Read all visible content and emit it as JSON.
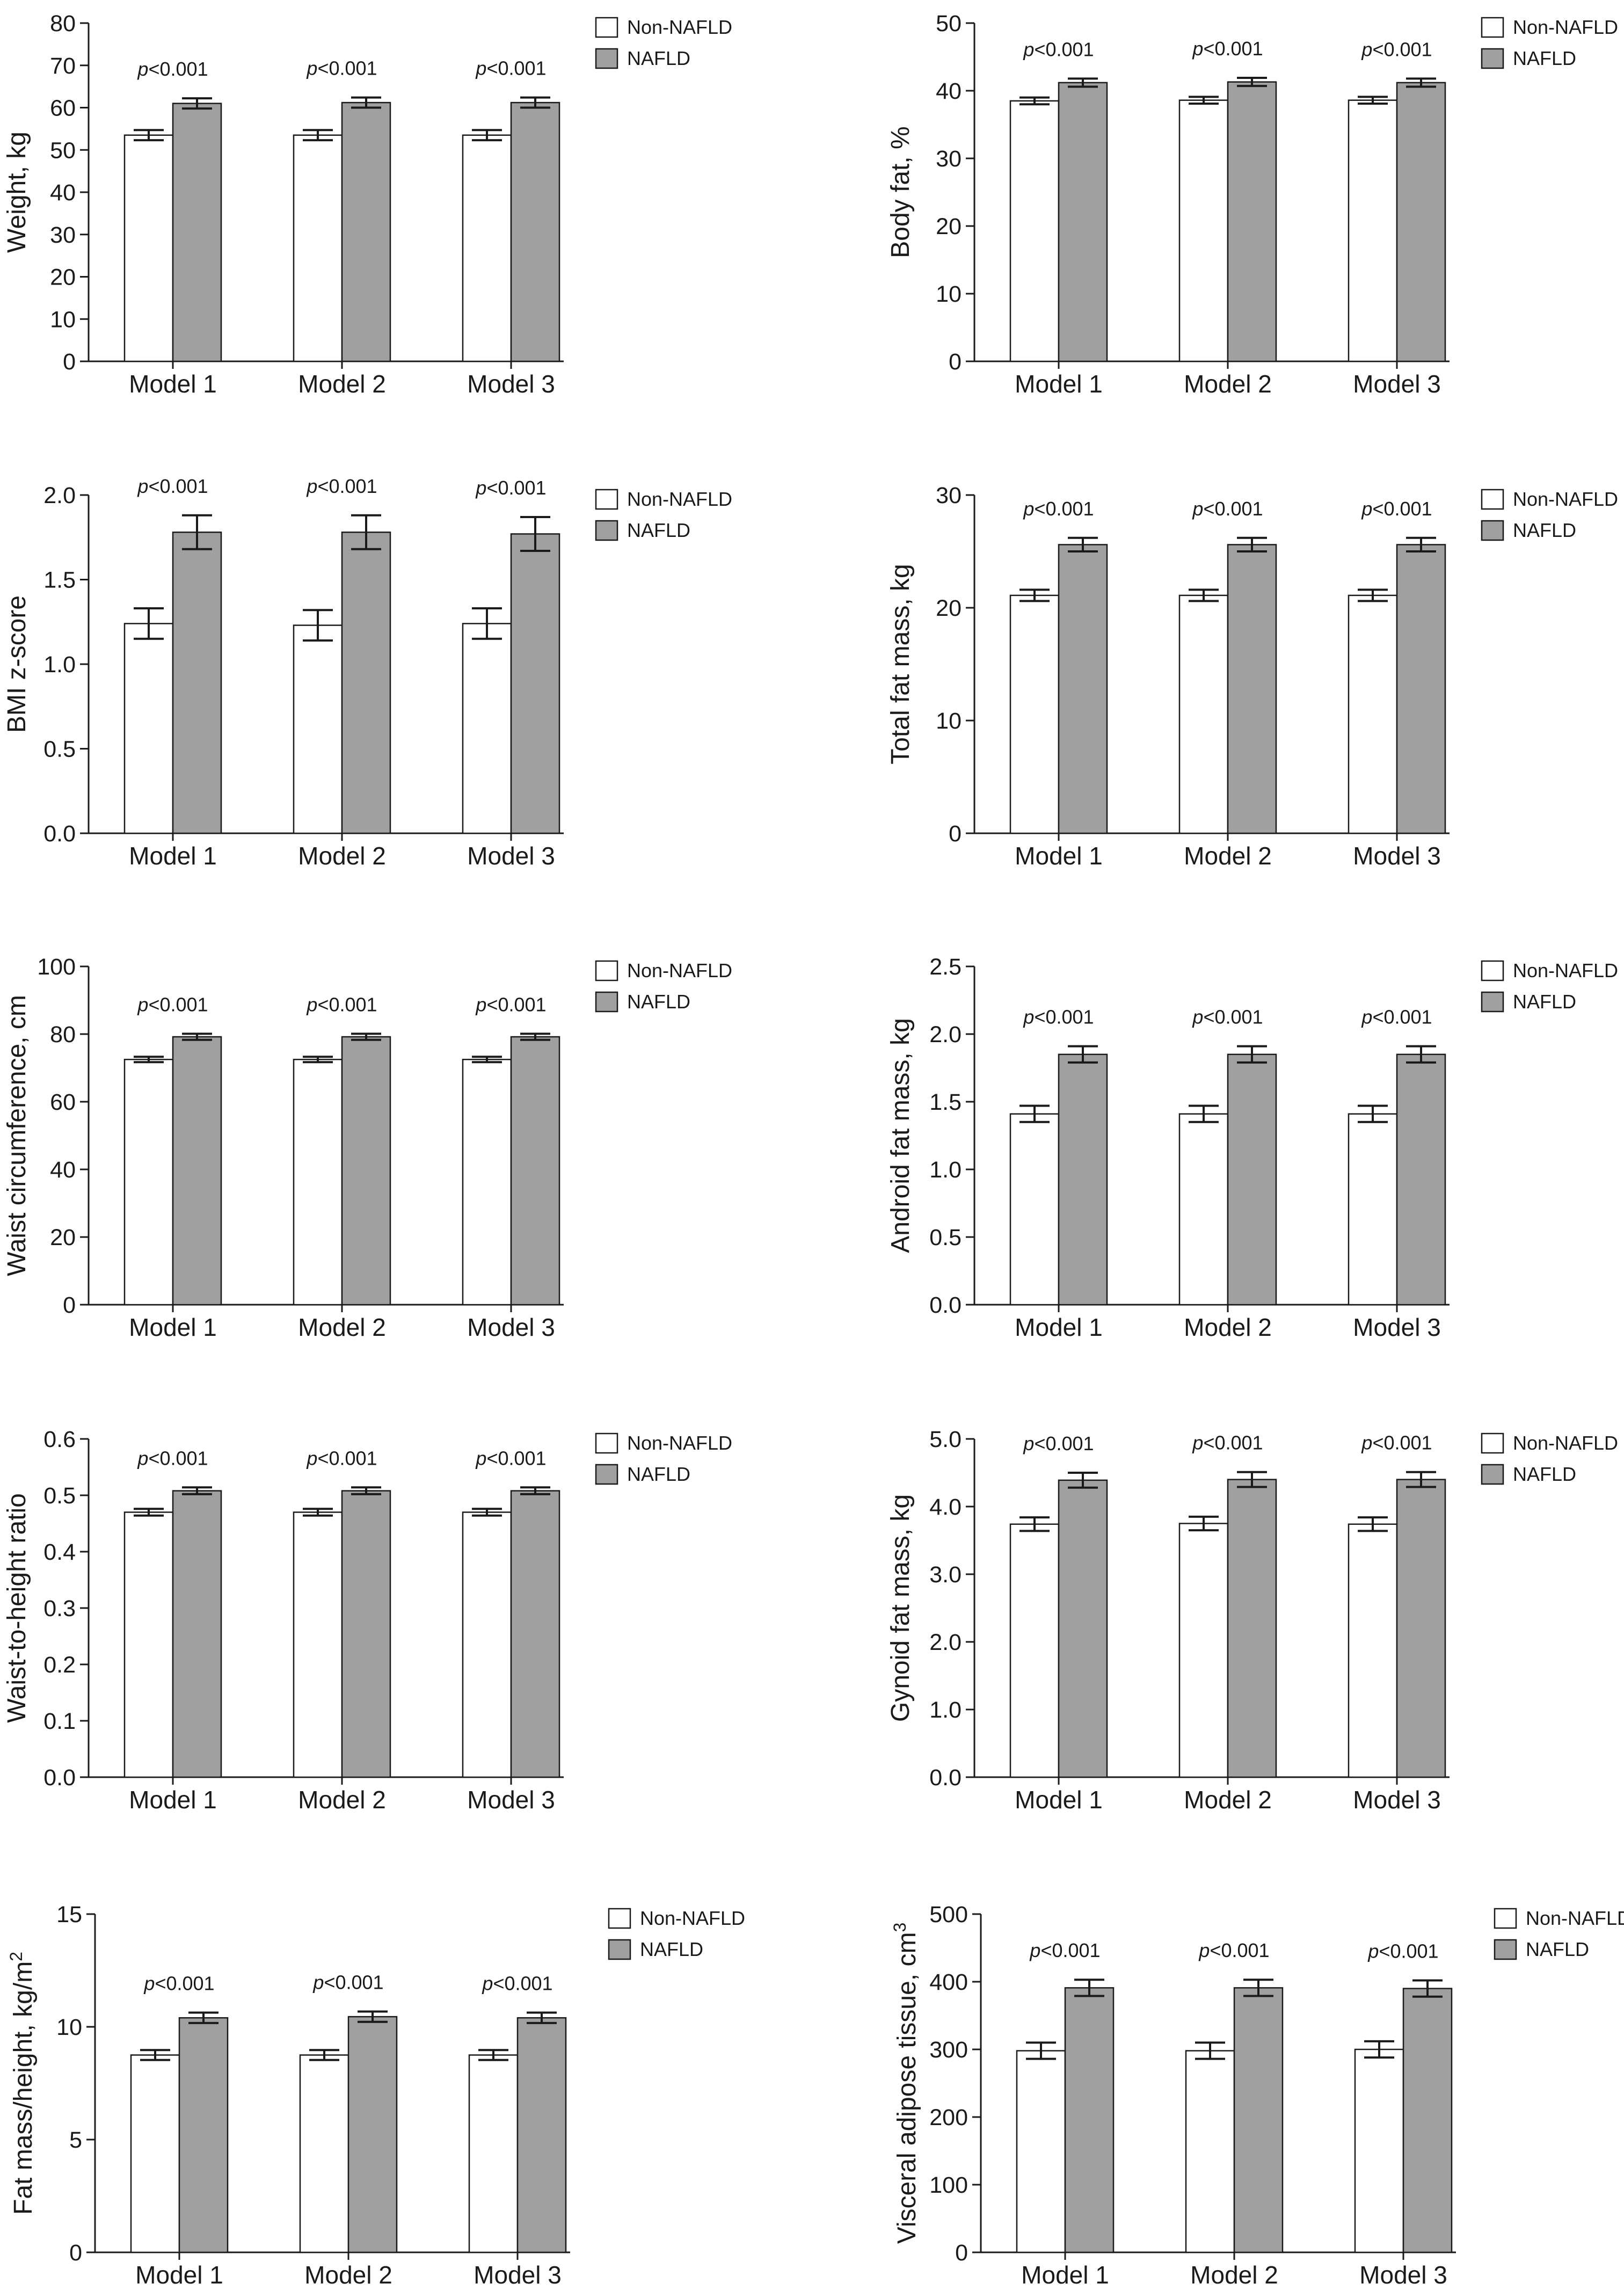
{
  "figure": {
    "legend": [
      "Non-NAFLD",
      "NAFLD"
    ],
    "colors": {
      "non_nafld": "#ffffff",
      "nafld": "#a0a0a0",
      "axis": "#1a1a1a"
    }
  },
  "chart_data": [
    {
      "type": "bar",
      "ylabel": "Weight, kg",
      "ylim": [
        0,
        80
      ],
      "yticks": [
        0,
        10,
        20,
        30,
        40,
        50,
        60,
        70,
        80
      ],
      "ytick_labels": [
        "0",
        "10",
        "20",
        "30",
        "40",
        "50",
        "60",
        "70",
        "80"
      ],
      "categories": [
        "Model 1",
        "Model 2",
        "Model 3"
      ],
      "series": [
        {
          "name": "Non-NAFLD",
          "values": [
            53.5,
            53.5,
            53.5
          ],
          "err": [
            1.2,
            1.2,
            1.2
          ]
        },
        {
          "name": "NAFLD",
          "values": [
            61.0,
            61.2,
            61.2
          ],
          "err": [
            1.2,
            1.2,
            1.2
          ]
        }
      ],
      "annotations": [
        "p<0.001",
        "p<0.001",
        "p<0.001"
      ],
      "legend": [
        "Non-NAFLD",
        "NAFLD"
      ]
    },
    {
      "type": "bar",
      "ylabel": "Body fat, %",
      "ylim": [
        0,
        50
      ],
      "yticks": [
        0,
        10,
        20,
        30,
        40,
        50
      ],
      "ytick_labels": [
        "0",
        "10",
        "20",
        "30",
        "40",
        "50"
      ],
      "categories": [
        "Model 1",
        "Model 2",
        "Model 3"
      ],
      "series": [
        {
          "name": "Non-NAFLD",
          "values": [
            38.5,
            38.6,
            38.6
          ],
          "err": [
            0.5,
            0.5,
            0.5
          ]
        },
        {
          "name": "NAFLD",
          "values": [
            41.2,
            41.3,
            41.2
          ],
          "err": [
            0.6,
            0.6,
            0.6
          ]
        }
      ],
      "annotations": [
        "p<0.001",
        "p<0.001",
        "p<0.001"
      ],
      "legend": [
        "Non-NAFLD",
        "NAFLD"
      ]
    },
    {
      "type": "bar",
      "ylabel": "BMI z-score",
      "ylim": [
        0,
        2.0
      ],
      "yticks": [
        0,
        0.5,
        1.0,
        1.5,
        2.0
      ],
      "ytick_labels": [
        "0.0",
        "0.5",
        "1.0",
        "1.5",
        "2.0"
      ],
      "categories": [
        "Model 1",
        "Model 2",
        "Model 3"
      ],
      "series": [
        {
          "name": "Non-NAFLD",
          "values": [
            1.24,
            1.23,
            1.24
          ],
          "err": [
            0.09,
            0.09,
            0.09
          ]
        },
        {
          "name": "NAFLD",
          "values": [
            1.78,
            1.78,
            1.77
          ],
          "err": [
            0.1,
            0.1,
            0.1
          ]
        }
      ],
      "annotations": [
        "p<0.001",
        "p<0.001",
        "p<0.001"
      ],
      "legend": [
        "Non-NAFLD",
        "NAFLD"
      ]
    },
    {
      "type": "bar",
      "ylabel": "Total fat mass, kg",
      "ylim": [
        0,
        30
      ],
      "yticks": [
        0,
        10,
        20,
        30
      ],
      "ytick_labels": [
        "0",
        "10",
        "20",
        "30"
      ],
      "categories": [
        "Model 1",
        "Model 2",
        "Model 3"
      ],
      "series": [
        {
          "name": "Non-NAFLD",
          "values": [
            21.1,
            21.1,
            21.1
          ],
          "err": [
            0.5,
            0.5,
            0.5
          ]
        },
        {
          "name": "NAFLD",
          "values": [
            25.6,
            25.6,
            25.6
          ],
          "err": [
            0.6,
            0.6,
            0.6
          ]
        }
      ],
      "annotations": [
        "p<0.001",
        "p<0.001",
        "p<0.001"
      ],
      "legend": [
        "Non-NAFLD",
        "NAFLD"
      ]
    },
    {
      "type": "bar",
      "ylabel": "Waist circumference, cm",
      "ylim": [
        0,
        100
      ],
      "yticks": [
        0,
        20,
        40,
        60,
        80,
        100
      ],
      "ytick_labels": [
        "0",
        "20",
        "40",
        "60",
        "80",
        "100"
      ],
      "categories": [
        "Model 1",
        "Model 2",
        "Model 3"
      ],
      "series": [
        {
          "name": "Non-NAFLD",
          "values": [
            72.5,
            72.5,
            72.5
          ],
          "err": [
            0.8,
            0.8,
            0.8
          ]
        },
        {
          "name": "NAFLD",
          "values": [
            79.2,
            79.2,
            79.2
          ],
          "err": [
            0.9,
            0.9,
            0.9
          ]
        }
      ],
      "annotations": [
        "p<0.001",
        "p<0.001",
        "p<0.001"
      ],
      "legend": [
        "Non-NAFLD",
        "NAFLD"
      ]
    },
    {
      "type": "bar",
      "ylabel": "Android fat mass, kg",
      "ylim": [
        0,
        2.5
      ],
      "yticks": [
        0,
        0.5,
        1.0,
        1.5,
        2.0,
        2.5
      ],
      "ytick_labels": [
        "0.0",
        "0.5",
        "1.0",
        "1.5",
        "2.0",
        "2.5"
      ],
      "categories": [
        "Model 1",
        "Model 2",
        "Model 3"
      ],
      "series": [
        {
          "name": "Non-NAFLD",
          "values": [
            1.41,
            1.41,
            1.41
          ],
          "err": [
            0.06,
            0.06,
            0.06
          ]
        },
        {
          "name": "NAFLD",
          "values": [
            1.85,
            1.85,
            1.85
          ],
          "err": [
            0.06,
            0.06,
            0.06
          ]
        }
      ],
      "annotations": [
        "p<0.001",
        "p<0.001",
        "p<0.001"
      ],
      "legend": [
        "Non-NAFLD",
        "NAFLD"
      ]
    },
    {
      "type": "bar",
      "ylabel": "Waist-to-height ratio",
      "ylim": [
        0,
        0.6
      ],
      "yticks": [
        0,
        0.1,
        0.2,
        0.3,
        0.4,
        0.5,
        0.6
      ],
      "ytick_labels": [
        "0.0",
        "0.1",
        "0.2",
        "0.3",
        "0.4",
        "0.5",
        "0.6"
      ],
      "categories": [
        "Model 1",
        "Model 2",
        "Model 3"
      ],
      "series": [
        {
          "name": "Non-NAFLD",
          "values": [
            0.47,
            0.47,
            0.47
          ],
          "err": [
            0.006,
            0.006,
            0.006
          ]
        },
        {
          "name": "NAFLD",
          "values": [
            0.508,
            0.508,
            0.508
          ],
          "err": [
            0.006,
            0.006,
            0.006
          ]
        }
      ],
      "annotations": [
        "p<0.001",
        "p<0.001",
        "p<0.001"
      ],
      "legend": [
        "Non-NAFLD",
        "NAFLD"
      ]
    },
    {
      "type": "bar",
      "ylabel": "Gynoid fat mass, kg",
      "ylim": [
        0,
        5.0
      ],
      "yticks": [
        0,
        1,
        2,
        3,
        4,
        5
      ],
      "ytick_labels": [
        "0.0",
        "1.0",
        "2.0",
        "3.0",
        "4.0",
        "5.0"
      ],
      "categories": [
        "Model 1",
        "Model 2",
        "Model 3"
      ],
      "series": [
        {
          "name": "Non-NAFLD",
          "values": [
            3.74,
            3.75,
            3.74
          ],
          "err": [
            0.1,
            0.1,
            0.1
          ]
        },
        {
          "name": "NAFLD",
          "values": [
            4.39,
            4.4,
            4.4
          ],
          "err": [
            0.11,
            0.11,
            0.11
          ]
        }
      ],
      "annotations": [
        "p<0.001",
        "p<0.001",
        "p<0.001"
      ],
      "legend": [
        "Non-NAFLD",
        "NAFLD"
      ]
    },
    {
      "type": "bar",
      "ylabel": "Fat mass/height, kg/m",
      "ylabel_superscript": "2",
      "ylim": [
        0,
        15
      ],
      "yticks": [
        0,
        5,
        10,
        15
      ],
      "ytick_labels": [
        "0",
        "5",
        "10",
        "15"
      ],
      "categories": [
        "Model 1",
        "Model 2",
        "Model 3"
      ],
      "series": [
        {
          "name": "Non-NAFLD",
          "values": [
            8.75,
            8.75,
            8.75
          ],
          "err": [
            0.22,
            0.22,
            0.22
          ]
        },
        {
          "name": "NAFLD",
          "values": [
            10.4,
            10.45,
            10.4
          ],
          "err": [
            0.23,
            0.23,
            0.23
          ]
        }
      ],
      "annotations": [
        "p<0.001",
        "p<0.001",
        "p<0.001"
      ],
      "legend": [
        "Non-NAFLD",
        "NAFLD"
      ]
    },
    {
      "type": "bar",
      "ylabel": "Visceral adipose tissue, cm",
      "ylabel_superscript": "3",
      "ylim": [
        0,
        500
      ],
      "yticks": [
        0,
        100,
        200,
        300,
        400,
        500
      ],
      "ytick_labels": [
        "0",
        "100",
        "200",
        "300",
        "400",
        "500"
      ],
      "categories": [
        "Model 1",
        "Model 2",
        "Model 3"
      ],
      "series": [
        {
          "name": "Non-NAFLD",
          "values": [
            298,
            298,
            300
          ],
          "err": [
            12,
            12,
            12
          ]
        },
        {
          "name": "NAFLD",
          "values": [
            391,
            391,
            390
          ],
          "err": [
            12,
            12,
            12
          ]
        }
      ],
      "annotations": [
        "p<0.001",
        "p<0.001",
        "p<0.001"
      ],
      "legend": [
        "Non-NAFLD",
        "NAFLD"
      ]
    }
  ]
}
